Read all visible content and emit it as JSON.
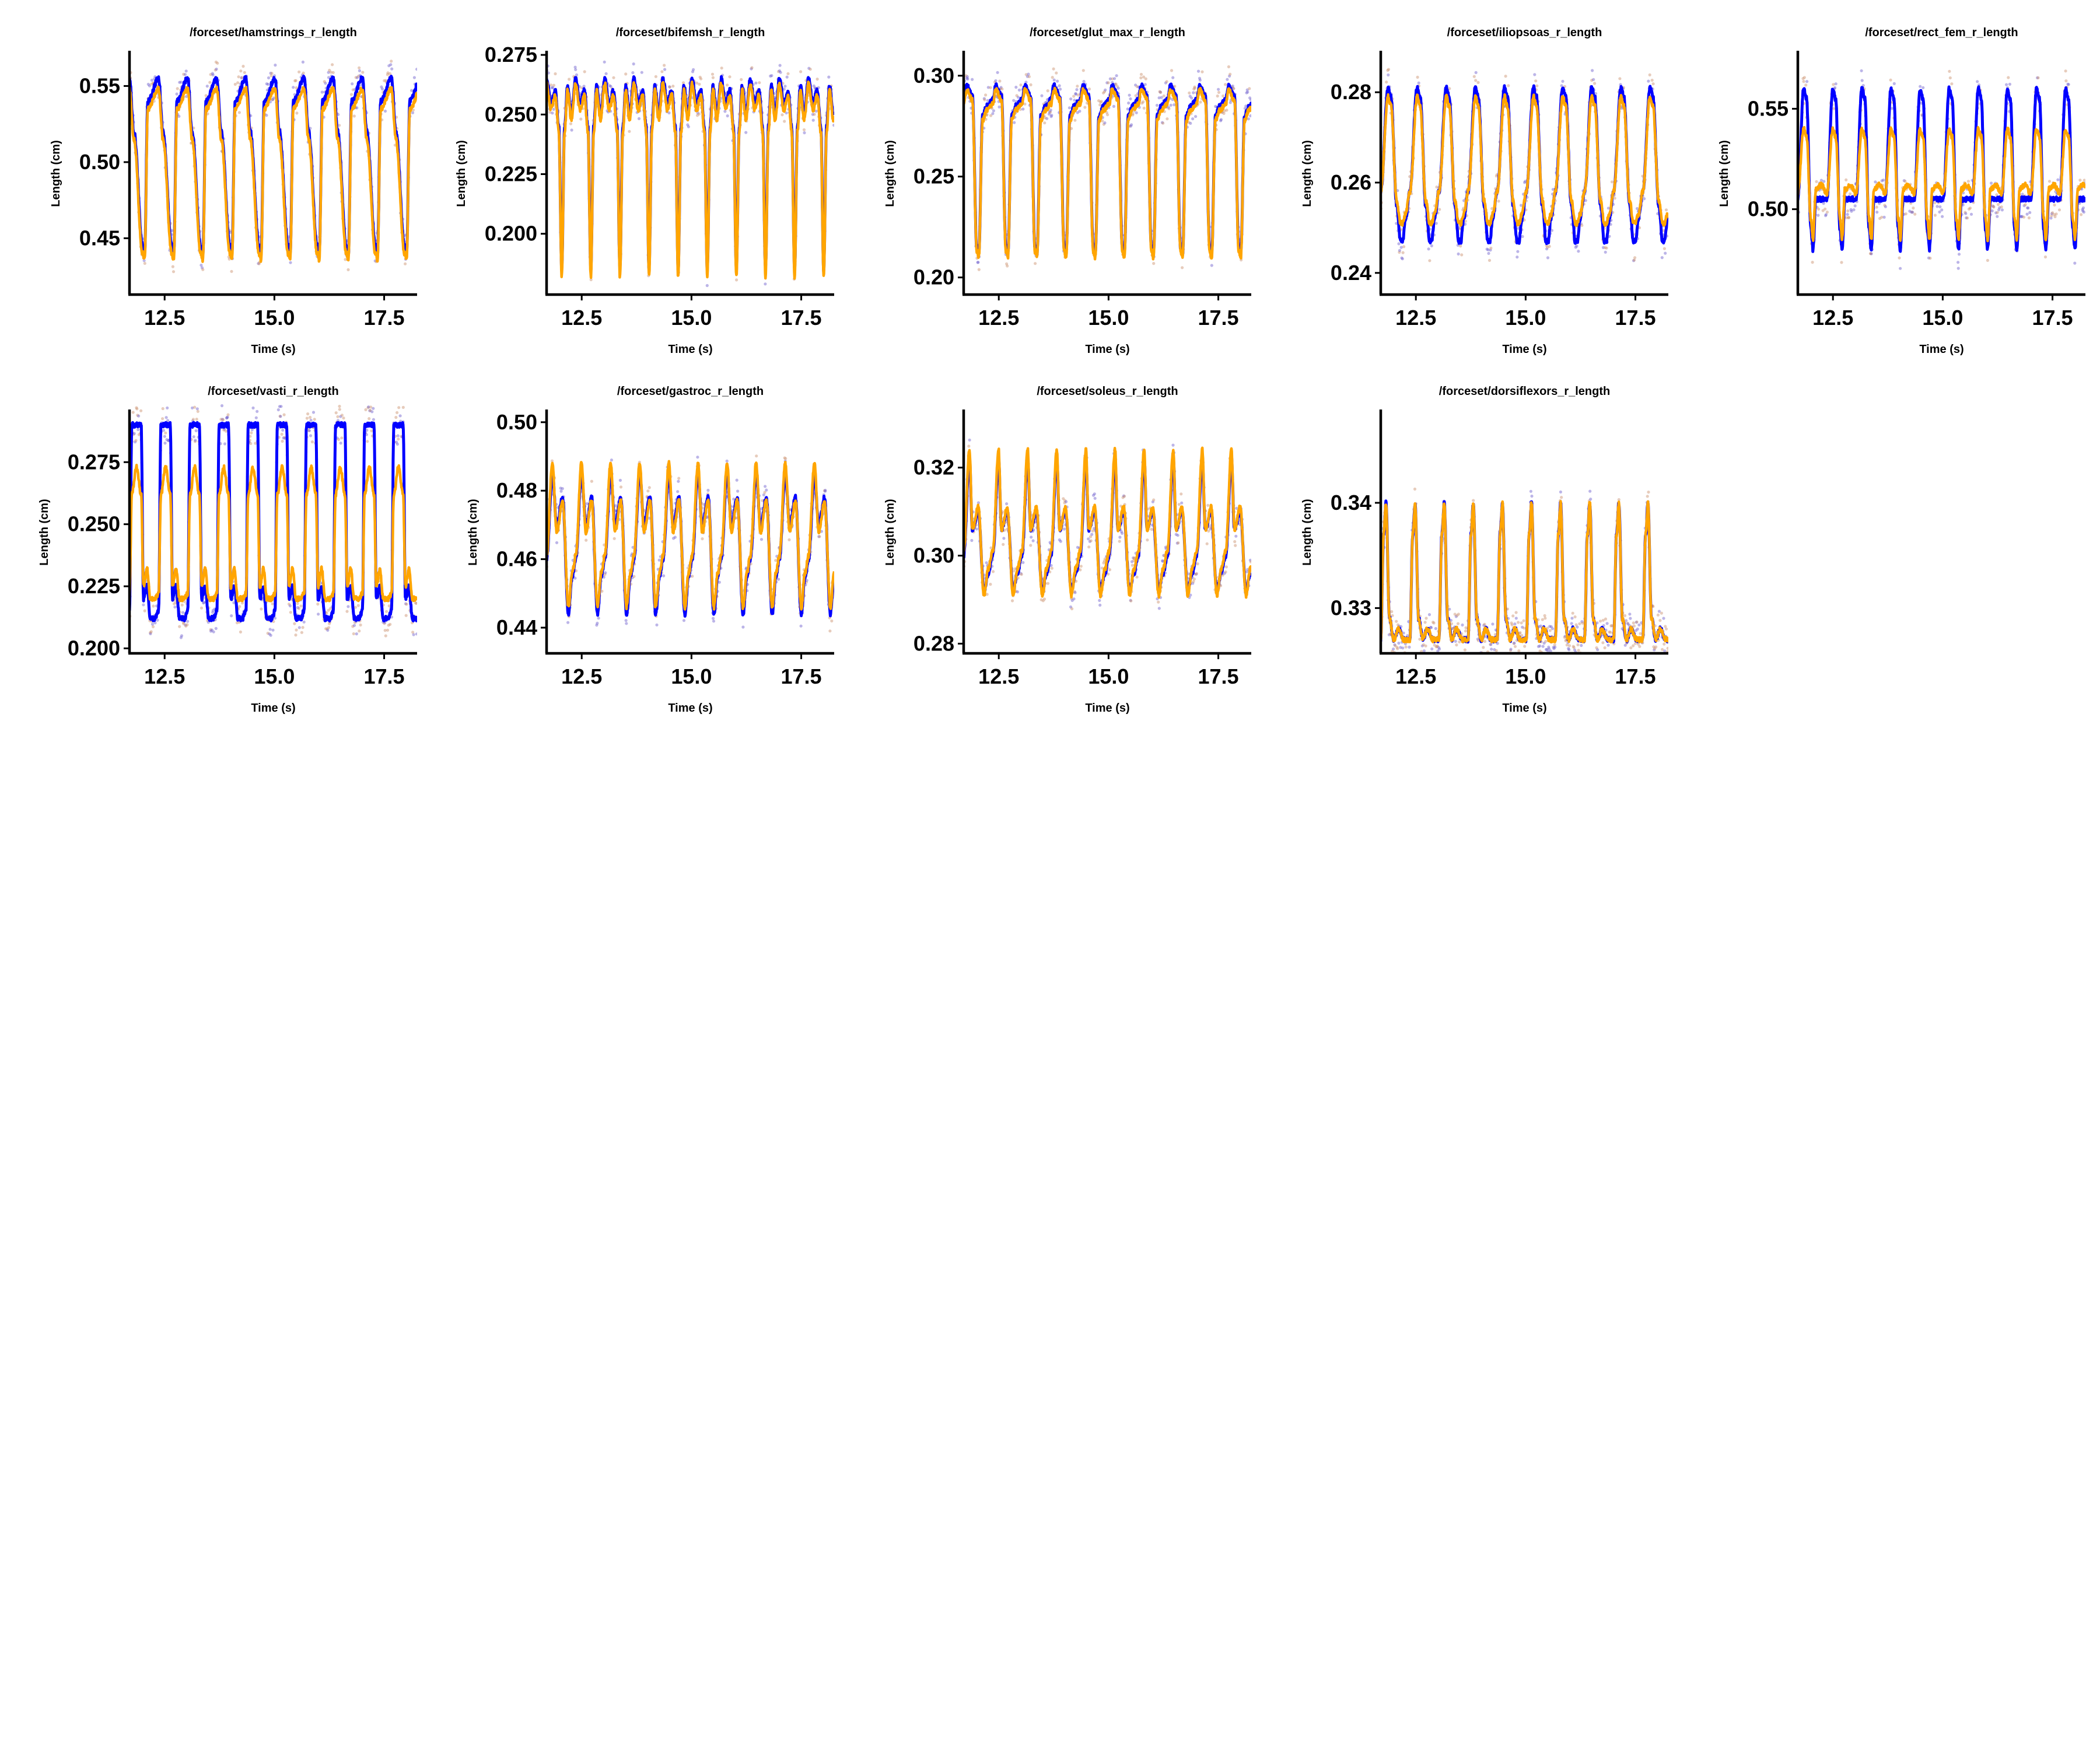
{
  "chart_data": [
    {
      "type": "line",
      "title": "/forceset/hamstrings_r_length",
      "xlabel": "Time (s)",
      "ylabel": "Length (cm)",
      "xlim": [
        11.7,
        18.25
      ],
      "ylim": [
        0.413,
        0.572
      ],
      "xticks": [
        "12.5",
        "15.0",
        "17.5"
      ],
      "yticks": [
        "0.45",
        "0.50",
        "0.55"
      ],
      "period": 0.663,
      "series": [
        {
          "name": "blue",
          "color": "#0000ff",
          "waveform": [
            [
              0,
              0.555
            ],
            [
              0.15,
              0.52
            ],
            [
              0.45,
              0.445
            ],
            [
              0.52,
              0.44
            ],
            [
              0.63,
              0.54
            ],
            [
              1,
              0.555
            ]
          ]
        },
        {
          "name": "orange",
          "color": "#ffa500",
          "waveform": [
            [
              0,
              0.548
            ],
            [
              0.15,
              0.515
            ],
            [
              0.45,
              0.44
            ],
            [
              0.52,
              0.436
            ],
            [
              0.63,
              0.535
            ],
            [
              1,
              0.548
            ]
          ]
        }
      ]
    },
    {
      "type": "line",
      "title": "/forceset/bifemsh_r_length",
      "xlabel": "Time (s)",
      "ylabel": "Length (cm)",
      "xlim": [
        11.7,
        18.25
      ],
      "ylim": [
        0.1745,
        0.276
      ],
      "xticks": [
        "12.5",
        "15.0",
        "17.5"
      ],
      "yticks": [
        "0.200",
        "0.225",
        "0.250",
        "0.275"
      ],
      "period": 0.663,
      "series": [
        {
          "name": "blue",
          "color": "#0000ff",
          "waveform": [
            [
              0,
              0.265
            ],
            [
              0.15,
              0.255
            ],
            [
              0.3,
              0.26
            ],
            [
              0.42,
              0.245
            ],
            [
              0.52,
              0.185
            ],
            [
              0.62,
              0.245
            ],
            [
              0.72,
              0.262
            ],
            [
              0.85,
              0.25
            ],
            [
              1,
              0.265
            ]
          ]
        },
        {
          "name": "orange",
          "color": "#ffa500",
          "waveform": [
            [
              0,
              0.263
            ],
            [
              0.15,
              0.252
            ],
            [
              0.3,
              0.258
            ],
            [
              0.42,
              0.243
            ],
            [
              0.52,
              0.182
            ],
            [
              0.62,
              0.243
            ],
            [
              0.72,
              0.26
            ],
            [
              0.85,
              0.248
            ],
            [
              1,
              0.263
            ]
          ]
        }
      ]
    },
    {
      "type": "line",
      "title": "/forceset/glut_max_r_length",
      "xlabel": "Time (s)",
      "ylabel": "Length (cm)",
      "xlim": [
        11.7,
        18.25
      ],
      "ylim": [
        0.1915,
        0.3115
      ],
      "xticks": [
        "12.5",
        "15.0",
        "17.5"
      ],
      "yticks": [
        "0.20",
        "0.25",
        "0.30"
      ],
      "period": 0.663,
      "series": [
        {
          "name": "blue",
          "color": "#0000ff",
          "waveform": [
            [
              0,
              0.288
            ],
            [
              0.1,
              0.295
            ],
            [
              0.3,
              0.29
            ],
            [
              0.45,
              0.215
            ],
            [
              0.52,
              0.212
            ],
            [
              0.65,
              0.28
            ],
            [
              0.8,
              0.285
            ],
            [
              1,
              0.288
            ]
          ]
        },
        {
          "name": "orange",
          "color": "#ffa500",
          "waveform": [
            [
              0,
              0.286
            ],
            [
              0.1,
              0.293
            ],
            [
              0.3,
              0.288
            ],
            [
              0.45,
              0.213
            ],
            [
              0.52,
              0.21
            ],
            [
              0.65,
              0.278
            ],
            [
              0.8,
              0.283
            ],
            [
              1,
              0.286
            ]
          ]
        }
      ]
    },
    {
      "type": "line",
      "title": "/forceset/iliopsoas_r_length",
      "xlabel": "Time (s)",
      "ylabel": "Length (cm)",
      "xlim": [
        11.7,
        18.25
      ],
      "ylim": [
        0.2352,
        0.2888
      ],
      "xticks": [
        "12.5",
        "15.0",
        "17.5"
      ],
      "yticks": [
        "0.24",
        "0.26",
        "0.28"
      ],
      "period": 0.663,
      "series": [
        {
          "name": "blue",
          "color": "#0000ff",
          "waveform": [
            [
              0,
              0.258
            ],
            [
              0.25,
              0.281
            ],
            [
              0.35,
              0.279
            ],
            [
              0.55,
              0.255
            ],
            [
              0.68,
              0.247
            ],
            [
              0.75,
              0.247
            ],
            [
              0.85,
              0.252
            ],
            [
              1,
              0.258
            ]
          ]
        },
        {
          "name": "orange",
          "color": "#ffa500",
          "waveform": [
            [
              0,
              0.258
            ],
            [
              0.25,
              0.279
            ],
            [
              0.35,
              0.277
            ],
            [
              0.55,
              0.256
            ],
            [
              0.68,
              0.251
            ],
            [
              0.75,
              0.251
            ],
            [
              0.85,
              0.253
            ],
            [
              1,
              0.258
            ]
          ]
        }
      ]
    },
    {
      "type": "line",
      "title": "/forceset/rect_fem_r_length",
      "xlabel": "Time (s)",
      "ylabel": "Length (cm)",
      "xlim": [
        11.7,
        18.25
      ],
      "ylim": [
        0.4575,
        0.578
      ],
      "xticks": [
        "12.5",
        "15.0",
        "17.5"
      ],
      "yticks": [
        "0.50",
        "0.55"
      ],
      "period": 0.663,
      "series": [
        {
          "name": "blue",
          "color": "#0000ff",
          "waveform": [
            [
              0,
              0.505
            ],
            [
              0.2,
              0.56
            ],
            [
              0.3,
              0.555
            ],
            [
              0.45,
              0.49
            ],
            [
              0.52,
              0.48
            ],
            [
              0.62,
              0.505
            ],
            [
              0.8,
              0.505
            ],
            [
              1,
              0.505
            ]
          ]
        },
        {
          "name": "orange",
          "color": "#ffa500",
          "waveform": [
            [
              0,
              0.508
            ],
            [
              0.2,
              0.54
            ],
            [
              0.3,
              0.536
            ],
            [
              0.45,
              0.495
            ],
            [
              0.52,
              0.485
            ],
            [
              0.62,
              0.51
            ],
            [
              0.8,
              0.512
            ],
            [
              1,
              0.508
            ]
          ]
        }
      ]
    },
    {
      "type": "line",
      "title": "/forceset/vasti_r_length",
      "xlabel": "Time (s)",
      "ylabel": "Length (cm)",
      "xlim": [
        11.7,
        18.25
      ],
      "ylim": [
        0.198,
        0.2955
      ],
      "xticks": [
        "12.5",
        "15.0",
        "17.5"
      ],
      "yticks": [
        "0.200",
        "0.225",
        "0.250",
        "0.275"
      ],
      "period": 0.663,
      "series": [
        {
          "name": "blue",
          "color": "#0000ff",
          "waveform": [
            [
              0,
              0.215
            ],
            [
              0.08,
              0.29
            ],
            [
              0.4,
              0.29
            ],
            [
              0.48,
              0.22
            ],
            [
              0.6,
              0.225
            ],
            [
              0.72,
              0.212
            ],
            [
              0.88,
              0.212
            ],
            [
              1,
              0.215
            ]
          ]
        },
        {
          "name": "orange",
          "color": "#ffa500",
          "waveform": [
            [
              0,
              0.222
            ],
            [
              0.08,
              0.262
            ],
            [
              0.24,
              0.273
            ],
            [
              0.4,
              0.262
            ],
            [
              0.48,
              0.225
            ],
            [
              0.6,
              0.232
            ],
            [
              0.72,
              0.22
            ],
            [
              0.88,
              0.22
            ],
            [
              1,
              0.222
            ]
          ]
        }
      ]
    },
    {
      "type": "line",
      "title": "/forceset/gastroc_r_length",
      "xlabel": "Time (s)",
      "ylabel": "Length (cm)",
      "xlim": [
        11.7,
        18.25
      ],
      "ylim": [
        0.4325,
        0.5032
      ],
      "xticks": [
        "12.5",
        "15.0",
        "17.5"
      ],
      "yticks": [
        "0.44",
        "0.46",
        "0.48",
        "0.50"
      ],
      "period": 0.663,
      "series": [
        {
          "name": "blue",
          "color": "#0000ff",
          "waveform": [
            [
              0,
              0.46
            ],
            [
              0.2,
              0.485
            ],
            [
              0.35,
              0.47
            ],
            [
              0.55,
              0.478
            ],
            [
              0.75,
              0.444
            ],
            [
              0.88,
              0.455
            ],
            [
              1,
              0.46
            ]
          ]
        },
        {
          "name": "orange",
          "color": "#ffa500",
          "waveform": [
            [
              0,
              0.461
            ],
            [
              0.2,
              0.488
            ],
            [
              0.35,
              0.468
            ],
            [
              0.55,
              0.477
            ],
            [
              0.75,
              0.446
            ],
            [
              0.88,
              0.456
            ],
            [
              1,
              0.461
            ]
          ]
        }
      ]
    },
    {
      "type": "line",
      "title": "/forceset/soleus_r_length",
      "xlabel": "Time (s)",
      "ylabel": "Length (cm)",
      "xlim": [
        11.7,
        18.25
      ],
      "ylim": [
        0.2778,
        0.3328
      ],
      "xticks": [
        "12.5",
        "15.0",
        "17.5"
      ],
      "yticks": [
        "0.28",
        "0.30",
        "0.32"
      ],
      "period": 0.663,
      "series": [
        {
          "name": "blue",
          "color": "#0000ff",
          "waveform": [
            [
              0,
              0.3
            ],
            [
              0.2,
              0.322
            ],
            [
              0.3,
              0.306
            ],
            [
              0.5,
              0.31
            ],
            [
              0.7,
              0.292
            ],
            [
              0.85,
              0.296
            ],
            [
              1,
              0.3
            ]
          ]
        },
        {
          "name": "orange",
          "color": "#ffa500",
          "waveform": [
            [
              0,
              0.301
            ],
            [
              0.2,
              0.324
            ],
            [
              0.3,
              0.306
            ],
            [
              0.5,
              0.311
            ],
            [
              0.7,
              0.291
            ],
            [
              0.85,
              0.297
            ],
            [
              1,
              0.301
            ]
          ]
        }
      ]
    },
    {
      "type": "line",
      "title": "/forceset/dorsiflexors_r_length",
      "xlabel": "Time (s)",
      "ylabel": "Length (cm)",
      "xlim": [
        11.7,
        18.25
      ],
      "ylim": [
        0.3257,
        0.3487
      ],
      "xticks": [
        "12.5",
        "15.0",
        "17.5"
      ],
      "yticks": [
        "0.33",
        "0.34"
      ],
      "period": 0.663,
      "series": [
        {
          "name": "blue",
          "color": "#0000ff",
          "waveform": [
            [
              0,
              0.327
            ],
            [
              0.1,
              0.337
            ],
            [
              0.18,
              0.34
            ],
            [
              0.3,
              0.329
            ],
            [
              0.45,
              0.327
            ],
            [
              0.6,
              0.328
            ],
            [
              0.8,
              0.327
            ],
            [
              1,
              0.327
            ]
          ]
        },
        {
          "name": "orange",
          "color": "#ffa500",
          "waveform": [
            [
              0,
              0.327
            ],
            [
              0.1,
              0.337
            ],
            [
              0.18,
              0.34
            ],
            [
              0.3,
              0.329
            ],
            [
              0.45,
              0.327
            ],
            [
              0.6,
              0.328
            ],
            [
              0.8,
              0.327
            ],
            [
              1,
              0.327
            ]
          ]
        }
      ]
    }
  ]
}
